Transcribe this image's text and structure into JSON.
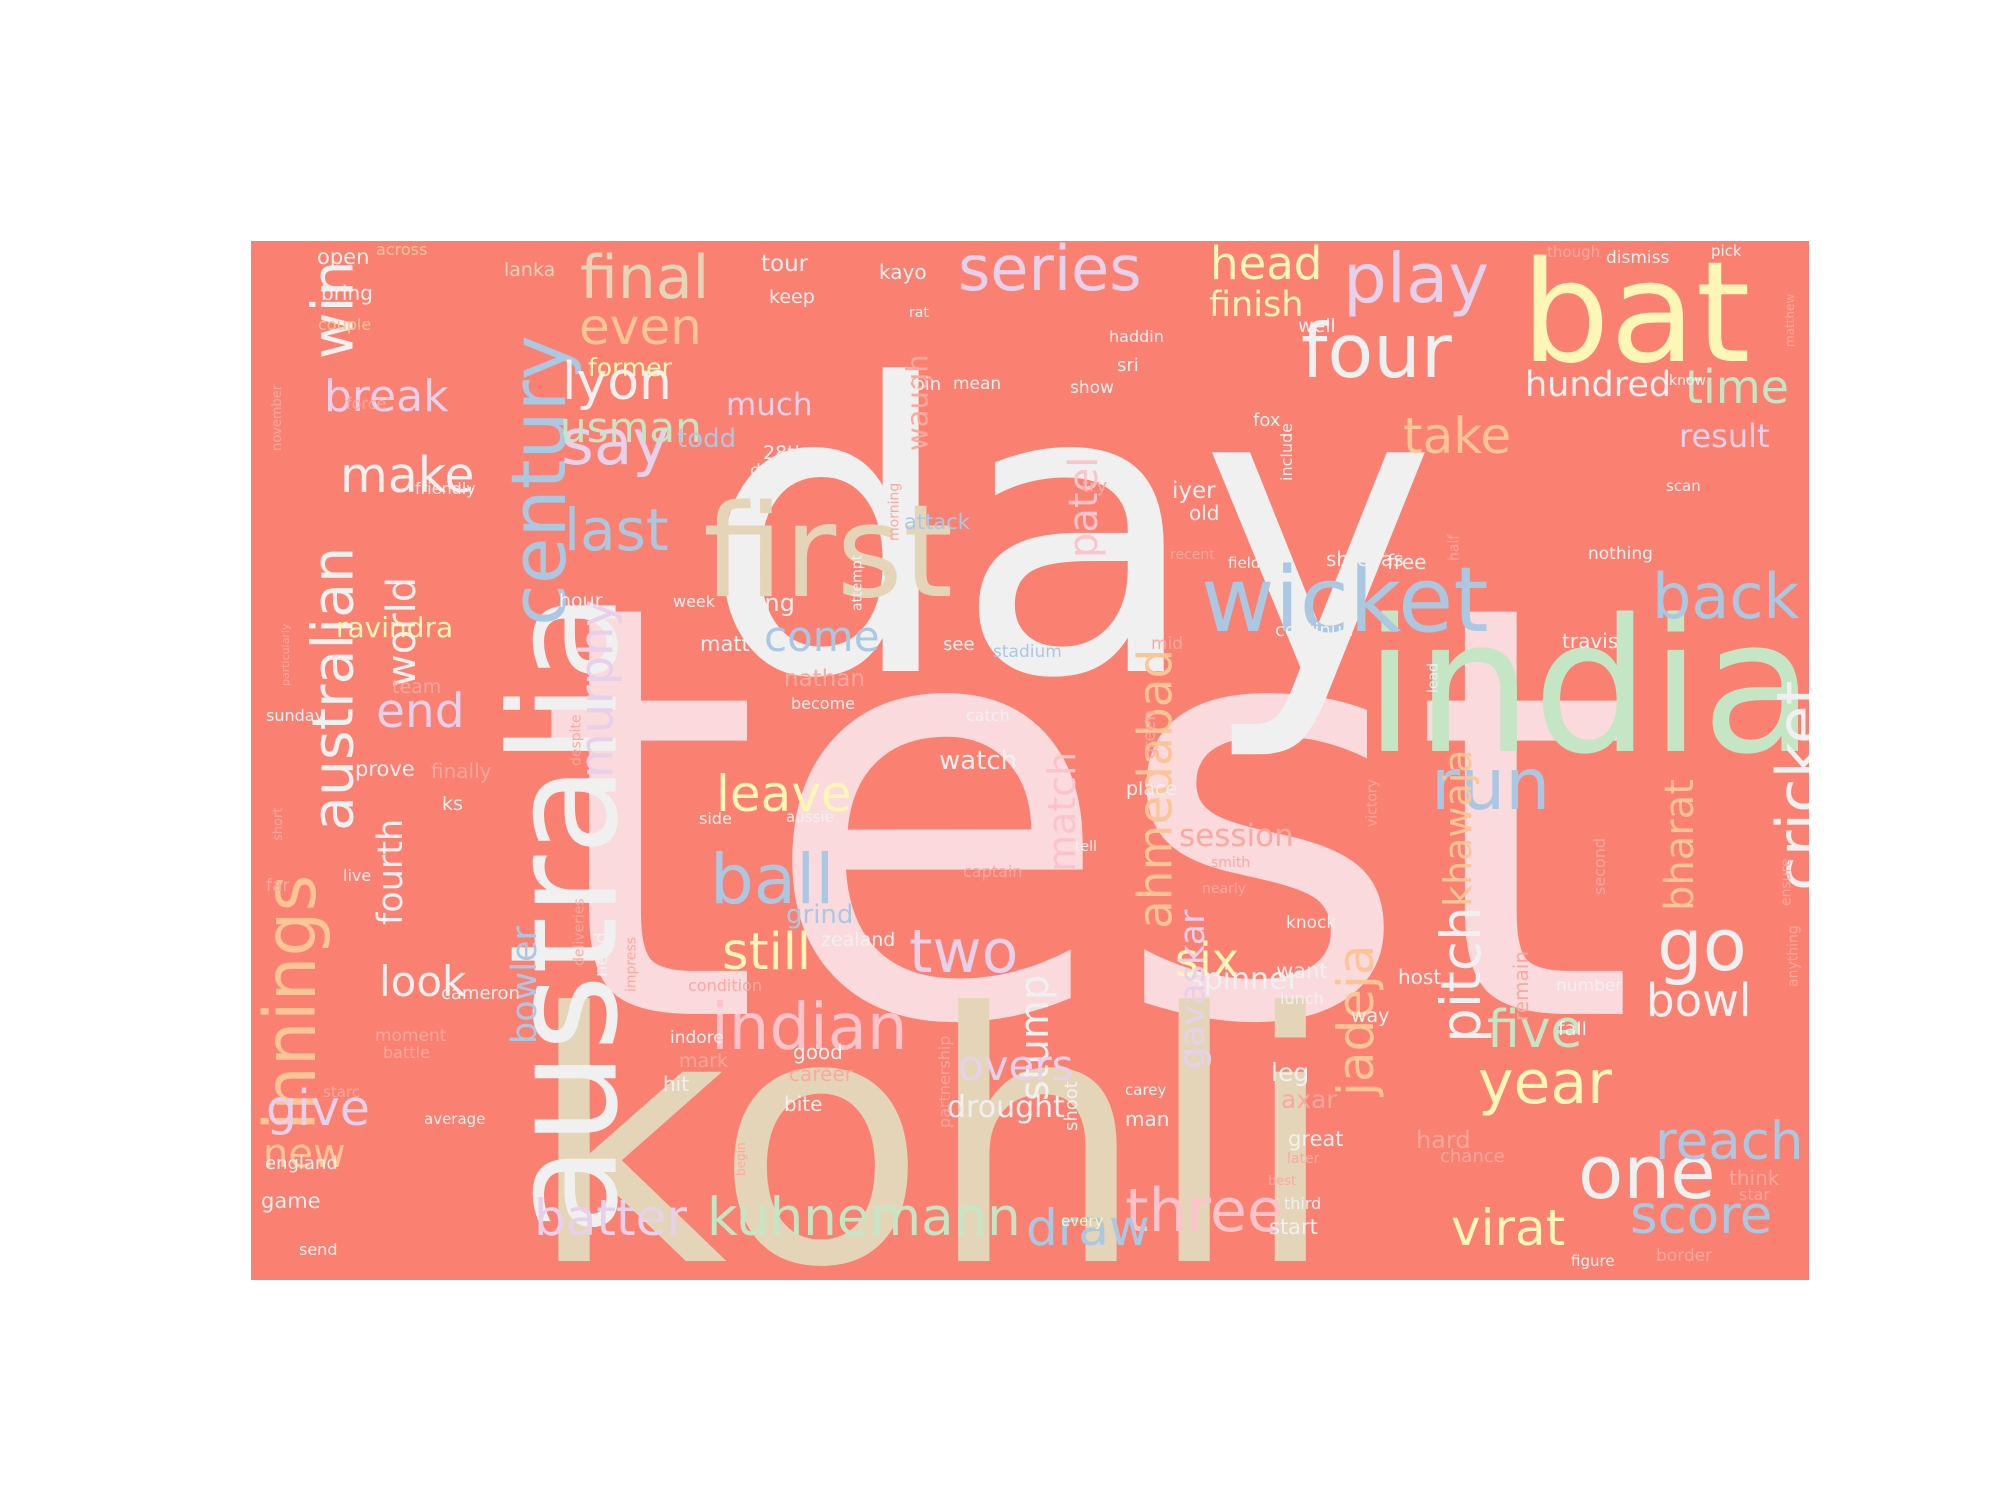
{
  "colors": {
    "background": "#fa8072",
    "palette": {
      "pink": "#fadadd",
      "white": "#f0f0f0",
      "beige": "#e5d5b8",
      "green": "#c5e6c5",
      "blue": "#aac8e2",
      "yellow": "#fdf6b7",
      "peach": "#fdc596",
      "lavender": "#e7d0ea",
      "lightpink": "#fcc4ca",
      "salmon": "#fda89e"
    }
  },
  "words": [
    {
      "text": "test",
      "color": "pink"
    },
    {
      "text": "day",
      "color": "white"
    },
    {
      "text": "kohli",
      "color": "beige"
    },
    {
      "text": "india",
      "color": "green"
    },
    {
      "text": "australia",
      "color": "white"
    },
    {
      "text": "bat",
      "color": "yellow"
    },
    {
      "text": "first",
      "color": "beige"
    },
    {
      "text": "wicket",
      "color": "blue"
    },
    {
      "text": "century",
      "color": "blue"
    },
    {
      "text": "series",
      "color": "lavender"
    },
    {
      "text": "play",
      "color": "lavender"
    },
    {
      "text": "four",
      "color": "white"
    },
    {
      "text": "innings",
      "color": "peach"
    },
    {
      "text": "australian",
      "color": "white"
    },
    {
      "text": "win",
      "color": "white"
    },
    {
      "text": "say",
      "color": "lavender"
    },
    {
      "text": "last",
      "color": "blue"
    },
    {
      "text": "lyon",
      "color": "white"
    },
    {
      "text": "final",
      "color": "beige"
    },
    {
      "text": "even",
      "color": "peach"
    },
    {
      "text": "usman",
      "color": "green"
    },
    {
      "text": "make",
      "color": "white"
    },
    {
      "text": "break",
      "color": "lavender"
    },
    {
      "text": "head",
      "color": "yellow"
    },
    {
      "text": "finish",
      "color": "yellow"
    },
    {
      "text": "take",
      "color": "peach"
    },
    {
      "text": "time",
      "color": "green"
    },
    {
      "text": "hundred",
      "color": "white"
    },
    {
      "text": "result",
      "color": "lavender"
    },
    {
      "text": "back",
      "color": "blue"
    },
    {
      "text": "cricket",
      "color": "white"
    },
    {
      "text": "pitch",
      "color": "white"
    },
    {
      "text": "run",
      "color": "blue"
    },
    {
      "text": "go",
      "color": "white"
    },
    {
      "text": "bowl",
      "color": "white"
    },
    {
      "text": "year",
      "color": "yellow"
    },
    {
      "text": "five",
      "color": "green"
    },
    {
      "text": "one",
      "color": "white"
    },
    {
      "text": "reach",
      "color": "blue"
    },
    {
      "text": "score",
      "color": "blue"
    },
    {
      "text": "virat",
      "color": "yellow"
    },
    {
      "text": "three",
      "color": "lightpink"
    },
    {
      "text": "draw",
      "color": "blue"
    },
    {
      "text": "kuhnemann",
      "color": "green"
    },
    {
      "text": "batter",
      "color": "lavender"
    },
    {
      "text": "ball",
      "color": "blue"
    },
    {
      "text": "two",
      "color": "lavender"
    },
    {
      "text": "still",
      "color": "yellow"
    },
    {
      "text": "indian",
      "color": "lightpink"
    },
    {
      "text": "leave",
      "color": "yellow"
    },
    {
      "text": "come",
      "color": "blue"
    },
    {
      "text": "end",
      "color": "lavender"
    },
    {
      "text": "world",
      "color": "white"
    },
    {
      "text": "give",
      "color": "lavender"
    },
    {
      "text": "new",
      "color": "peach"
    },
    {
      "text": "look",
      "color": "white"
    },
    {
      "text": "fourth",
      "color": "white"
    },
    {
      "text": "murphy",
      "color": "lavender"
    },
    {
      "text": "bowler",
      "color": "blue"
    },
    {
      "text": "ahmedabad",
      "color": "peach"
    },
    {
      "text": "match",
      "color": "lightpink"
    },
    {
      "text": "patel",
      "color": "lightpink"
    },
    {
      "text": "six",
      "color": "yellow"
    },
    {
      "text": "spinner",
      "color": "white"
    },
    {
      "text": "jadeja",
      "color": "peach"
    },
    {
      "text": "khawaja",
      "color": "peach"
    },
    {
      "text": "gavaskar",
      "color": "lavender"
    },
    {
      "text": "stump",
      "color": "white"
    },
    {
      "text": "overs",
      "color": "lavender"
    },
    {
      "text": "drought",
      "color": "white"
    },
    {
      "text": "bharat",
      "color": "peach"
    },
    {
      "text": "session",
      "color": "salmon"
    },
    {
      "text": "waugh",
      "color": "salmon"
    },
    {
      "text": "ravindra",
      "color": "yellow"
    },
    {
      "text": "much",
      "color": "lavender"
    },
    {
      "text": "todd",
      "color": "blue"
    },
    {
      "text": "former",
      "color": "yellow"
    },
    {
      "text": "tour",
      "color": "white"
    },
    {
      "text": "keep",
      "color": "white"
    },
    {
      "text": "kayo",
      "color": "white"
    },
    {
      "text": "open",
      "color": "white"
    },
    {
      "text": "across",
      "color": "peach"
    },
    {
      "text": "lanka",
      "color": "beige"
    },
    {
      "text": "bring",
      "color": "white"
    },
    {
      "text": "couple",
      "color": "peach"
    },
    {
      "text": "force",
      "color": "salmon"
    },
    {
      "text": "november",
      "color": "salmon"
    },
    {
      "text": "friendly",
      "color": "white"
    },
    {
      "text": "particularly",
      "color": "salmon"
    },
    {
      "text": "sunday",
      "color": "white"
    },
    {
      "text": "team",
      "color": "salmon"
    },
    {
      "text": "despite",
      "color": "salmon"
    },
    {
      "text": "prove",
      "color": "white"
    },
    {
      "text": "finally",
      "color": "salmon"
    },
    {
      "text": "ks",
      "color": "white"
    },
    {
      "text": "short",
      "color": "salmon"
    },
    {
      "text": "far",
      "color": "salmon"
    },
    {
      "text": "live",
      "color": "white"
    },
    {
      "text": "deliveries",
      "color": "salmon"
    },
    {
      "text": "cameron",
      "color": "white"
    },
    {
      "text": "moment",
      "color": "salmon"
    },
    {
      "text": "battle",
      "color": "salmon"
    },
    {
      "text": "starc",
      "color": "salmon"
    },
    {
      "text": "average",
      "color": "white"
    },
    {
      "text": "england",
      "color": "white"
    },
    {
      "text": "game",
      "color": "white"
    },
    {
      "text": "send",
      "color": "white"
    },
    {
      "text": "hour",
      "color": "white"
    },
    {
      "text": "week",
      "color": "white"
    },
    {
      "text": "long",
      "color": "white"
    },
    {
      "text": "attempt",
      "color": "white"
    },
    {
      "text": "morning",
      "color": "salmon"
    },
    {
      "text": "attack",
      "color": "blue"
    },
    {
      "text": "matt",
      "color": "white"
    },
    {
      "text": "see",
      "color": "white"
    },
    {
      "text": "stadium",
      "color": "blue"
    },
    {
      "text": "nathan",
      "color": "salmon"
    },
    {
      "text": "become",
      "color": "white"
    },
    {
      "text": "side",
      "color": "white"
    },
    {
      "text": "aussie",
      "color": "white"
    },
    {
      "text": "catch",
      "color": "white"
    },
    {
      "text": "watch",
      "color": "white"
    },
    {
      "text": "tell",
      "color": "white"
    },
    {
      "text": "captain",
      "color": "salmon"
    },
    {
      "text": "grind",
      "color": "blue"
    },
    {
      "text": "zealand",
      "color": "white"
    },
    {
      "text": "need",
      "color": "white"
    },
    {
      "text": "impress",
      "color": "salmon"
    },
    {
      "text": "condition",
      "color": "salmon"
    },
    {
      "text": "partnership",
      "color": "salmon"
    },
    {
      "text": "indore",
      "color": "white"
    },
    {
      "text": "mark",
      "color": "salmon"
    },
    {
      "text": "hit",
      "color": "white"
    },
    {
      "text": "good",
      "color": "white"
    },
    {
      "text": "career",
      "color": "salmon"
    },
    {
      "text": "bite",
      "color": "white"
    },
    {
      "text": "begin",
      "color": "salmon"
    },
    {
      "text": "shoot",
      "color": "white"
    },
    {
      "text": "every",
      "color": "yellow"
    },
    {
      "text": "man",
      "color": "white"
    },
    {
      "text": "carey",
      "color": "white"
    },
    {
      "text": "place",
      "color": "white"
    },
    {
      "text": "green",
      "color": "salmon"
    },
    {
      "text": "mid",
      "color": "salmon"
    },
    {
      "text": "28th",
      "color": "white"
    },
    {
      "text": "deep",
      "color": "white"
    },
    {
      "text": "spin",
      "color": "white"
    },
    {
      "text": "mean",
      "color": "white"
    },
    {
      "text": "rat",
      "color": "white"
    },
    {
      "text": "show",
      "color": "white"
    },
    {
      "text": "haddin",
      "color": "white"
    },
    {
      "text": "sri",
      "color": "white"
    },
    {
      "text": "well",
      "color": "white"
    },
    {
      "text": "try",
      "color": "salmon"
    },
    {
      "text": "iyer",
      "color": "white"
    },
    {
      "text": "old",
      "color": "white"
    },
    {
      "text": "recent",
      "color": "salmon"
    },
    {
      "text": "field",
      "color": "white"
    },
    {
      "text": "fox",
      "color": "white"
    },
    {
      "text": "include",
      "color": "white"
    },
    {
      "text": "shreyas",
      "color": "white"
    },
    {
      "text": "free",
      "color": "white"
    },
    {
      "text": "half",
      "color": "salmon"
    },
    {
      "text": "continue",
      "color": "white"
    },
    {
      "text": "lead",
      "color": "white"
    },
    {
      "text": "smith",
      "color": "salmon"
    },
    {
      "text": "knock",
      "color": "white"
    },
    {
      "text": "victory",
      "color": "salmon"
    },
    {
      "text": "nearly",
      "color": "salmon"
    },
    {
      "text": "want",
      "color": "white"
    },
    {
      "text": "lunch",
      "color": "white"
    },
    {
      "text": "way",
      "color": "white"
    },
    {
      "text": "leg",
      "color": "white"
    },
    {
      "text": "axar",
      "color": "salmon"
    },
    {
      "text": "great",
      "color": "white"
    },
    {
      "text": "later",
      "color": "salmon"
    },
    {
      "text": "best",
      "color": "salmon"
    },
    {
      "text": "third",
      "color": "white"
    },
    {
      "text": "start",
      "color": "white"
    },
    {
      "text": "hard",
      "color": "salmon"
    },
    {
      "text": "chance",
      "color": "salmon"
    },
    {
      "text": "host",
      "color": "white"
    },
    {
      "text": "fall",
      "color": "white"
    },
    {
      "text": "number",
      "color": "white"
    },
    {
      "text": "remain",
      "color": "salmon"
    },
    {
      "text": "second",
      "color": "salmon"
    },
    {
      "text": "travis",
      "color": "white"
    },
    {
      "text": "nothing",
      "color": "white"
    },
    {
      "text": "scan",
      "color": "white"
    },
    {
      "text": "know",
      "color": "white"
    },
    {
      "text": "though",
      "color": "salmon"
    },
    {
      "text": "dismiss",
      "color": "white"
    },
    {
      "text": "pick",
      "color": "white"
    },
    {
      "text": "matthew",
      "color": "salmon"
    },
    {
      "text": "ensure",
      "color": "salmon"
    },
    {
      "text": "anything",
      "color": "salmon"
    },
    {
      "text": "think",
      "color": "salmon"
    },
    {
      "text": "star",
      "color": "salmon"
    },
    {
      "text": "figure",
      "color": "white"
    },
    {
      "text": "border",
      "color": "salmon"
    }
  ]
}
